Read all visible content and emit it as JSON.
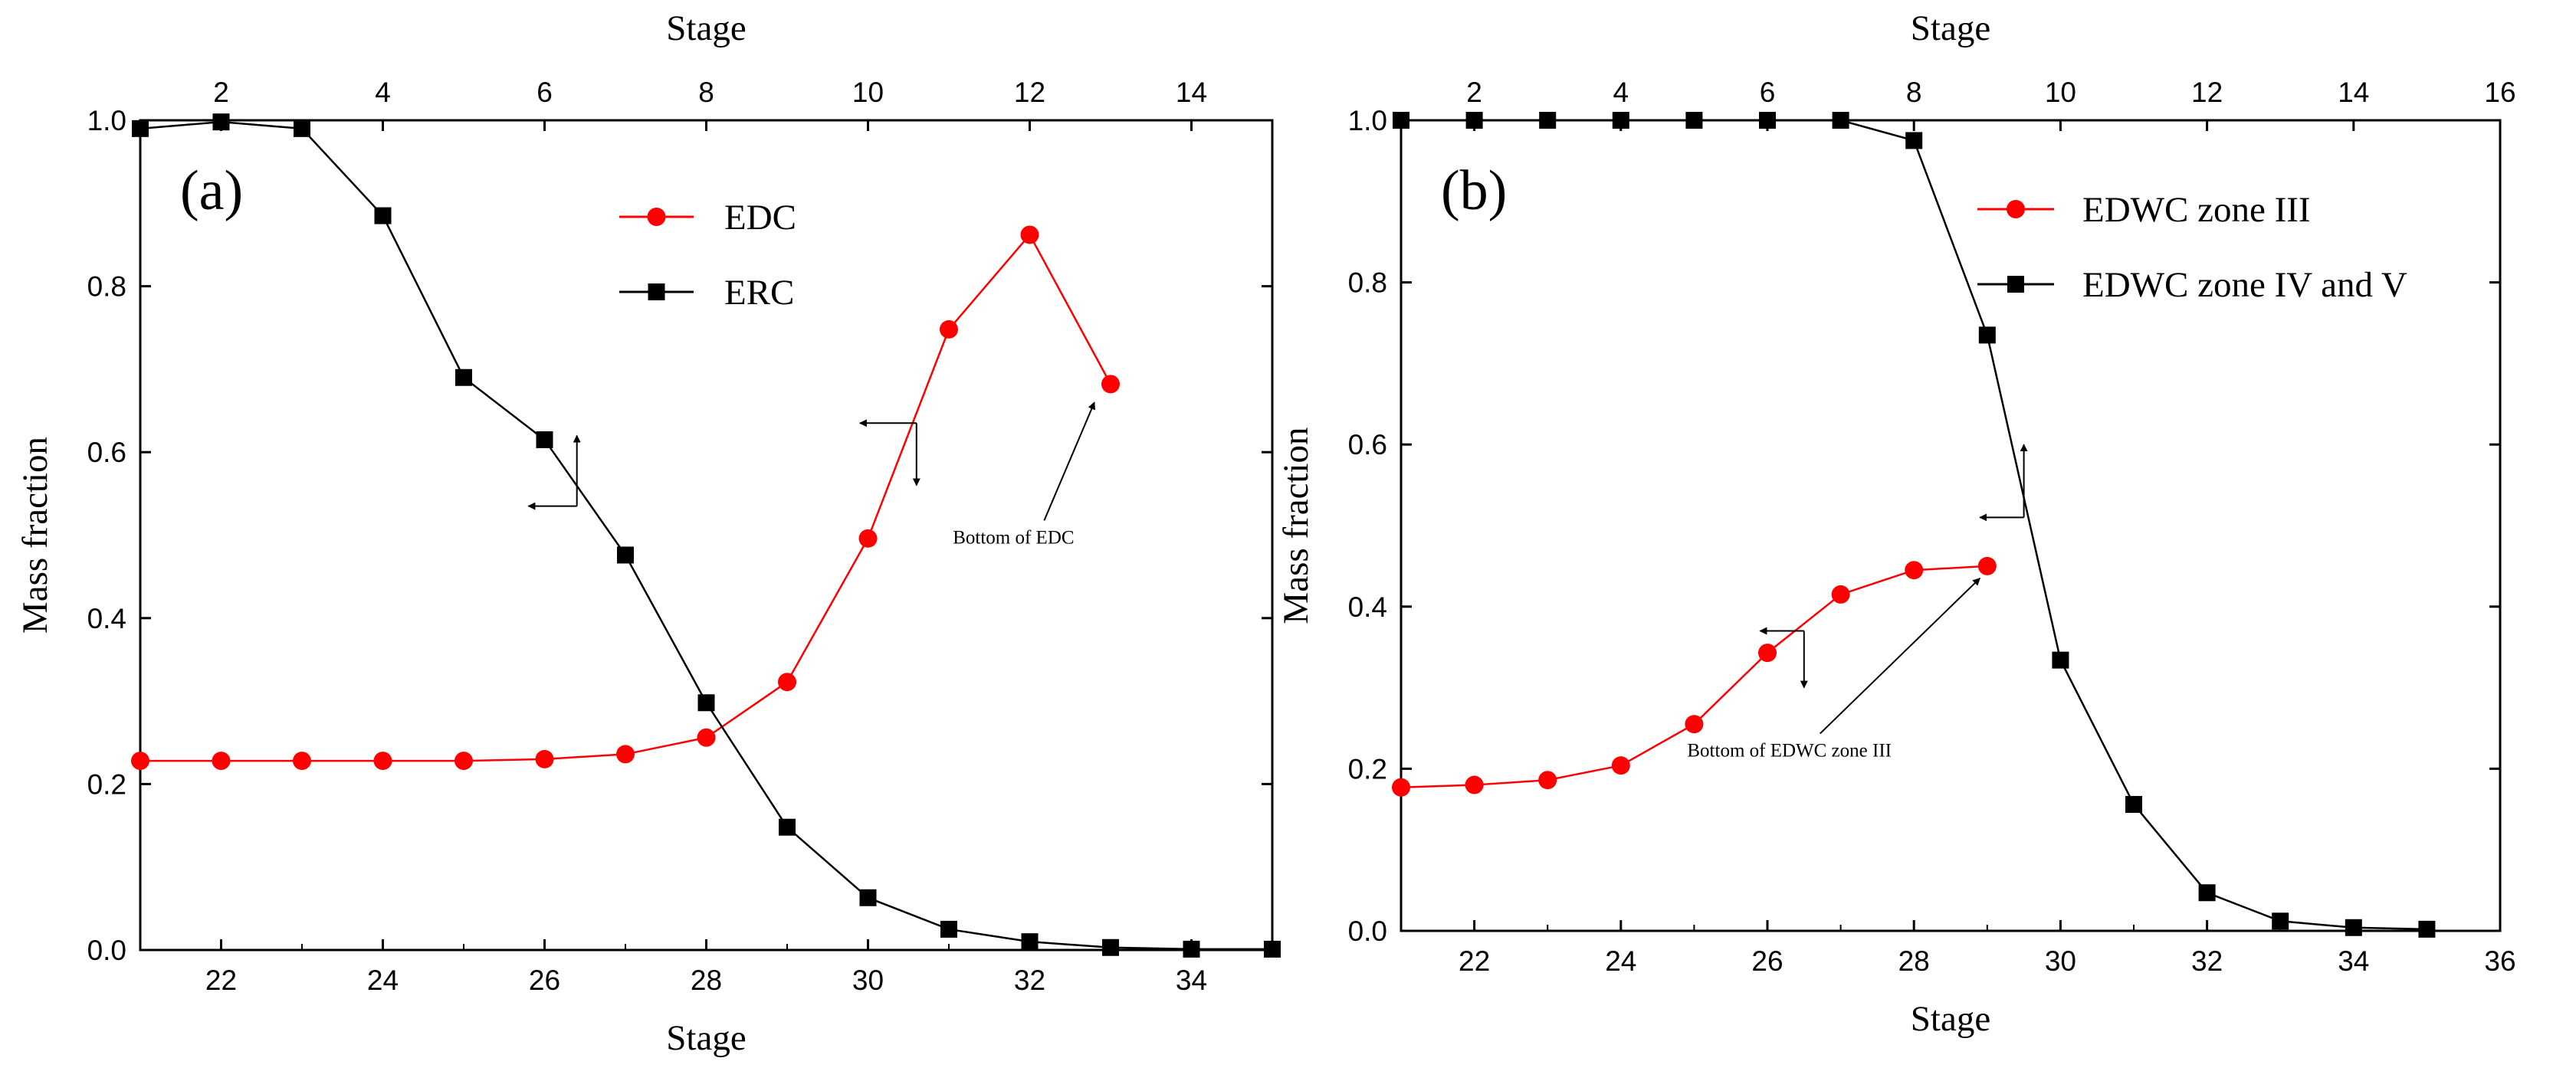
{
  "chart_data": [
    {
      "id": "a",
      "type": "line",
      "panel_label": "(a)",
      "xlabel": "Stage",
      "ylabel": "Mass fraction",
      "top_xlabel": "Stage",
      "xlim": [
        21,
        35
      ],
      "ylim": [
        0.0,
        1.0
      ],
      "top_xlim": [
        1,
        15
      ],
      "x_ticks": [
        22,
        24,
        26,
        28,
        30,
        32,
        34
      ],
      "top_ticks": [
        2,
        4,
        6,
        8,
        10,
        12,
        14
      ],
      "y_ticks": [
        "0.0",
        "0.2",
        "0.4",
        "0.6",
        "0.8",
        "1.0"
      ],
      "series": [
        {
          "name": "EDC",
          "color": "#ff0000",
          "marker": "circle",
          "axis": "bottom",
          "x": [
            21,
            22,
            23,
            24,
            25,
            26,
            27,
            28,
            29,
            30,
            31,
            32,
            33
          ],
          "y": [
            0.228,
            0.228,
            0.228,
            0.228,
            0.228,
            0.23,
            0.236,
            0.256,
            0.323,
            0.496,
            0.748,
            0.862,
            0.682
          ]
        },
        {
          "name": "ERC",
          "color": "#000000",
          "marker": "square",
          "axis": "top",
          "x": [
            1,
            2,
            3,
            4,
            5,
            6,
            7,
            8,
            9,
            10,
            11,
            12,
            13,
            14,
            15
          ],
          "y": [
            0.99,
            0.998,
            0.99,
            0.885,
            0.69,
            0.615,
            0.476,
            0.298,
            0.148,
            0.063,
            0.025,
            0.01,
            0.003,
            0.001,
            0.001
          ]
        }
      ],
      "annotations": [
        {
          "text": "Bottom of EDC",
          "x": 31.8,
          "y": 0.49,
          "arrow_to": [
            32.8,
            0.66
          ]
        }
      ],
      "axis_arrows": [
        {
          "x": 26.4,
          "y": 0.535,
          "left_to_x": 25.8,
          "up_to_y": 0.62
        },
        {
          "x": 30.6,
          "y": 0.635,
          "left_to_x": 29.9,
          "down_to_y": 0.56
        }
      ]
    },
    {
      "id": "b",
      "type": "line",
      "panel_label": "(b)",
      "xlabel": "Stage",
      "ylabel": "Mass fraction",
      "top_xlabel": "Stage",
      "xlim": [
        21,
        36
      ],
      "ylim": [
        0.0,
        1.0
      ],
      "top_xlim": [
        1,
        16
      ],
      "x_ticks": [
        22,
        24,
        26,
        28,
        30,
        32,
        34,
        36
      ],
      "top_ticks": [
        2,
        4,
        6,
        8,
        10,
        12,
        14,
        16
      ],
      "y_ticks": [
        "0.0",
        "0.2",
        "0.4",
        "0.6",
        "0.8",
        "1.0"
      ],
      "series": [
        {
          "name": "EDWC zone III",
          "color": "#ff0000",
          "marker": "circle",
          "axis": "bottom",
          "x": [
            21,
            22,
            23,
            24,
            25,
            26,
            27,
            28,
            29
          ],
          "y": [
            0.177,
            0.18,
            0.186,
            0.204,
            0.255,
            0.343,
            0.415,
            0.445,
            0.45
          ]
        },
        {
          "name": "EDWC zone IV and V",
          "color": "#000000",
          "marker": "square",
          "axis": "top",
          "x": [
            1,
            2,
            3,
            4,
            5,
            6,
            7,
            8,
            9,
            10,
            11,
            12,
            13,
            14,
            15
          ],
          "y": [
            1.0,
            1.0,
            1.0,
            1.0,
            1.0,
            1.0,
            1.0,
            0.975,
            0.735,
            0.334,
            0.156,
            0.047,
            0.012,
            0.004,
            0.002
          ]
        }
      ],
      "annotations": [
        {
          "text": "Bottom of EDWC zone III",
          "x": 26.3,
          "y": 0.215,
          "arrow_to": [
            28.9,
            0.435
          ]
        }
      ],
      "axis_arrows": [
        {
          "x": 29.5,
          "y": 0.51,
          "left_to_x": 28.9,
          "up_to_y": 0.6
        },
        {
          "x": 26.5,
          "y": 0.37,
          "left_to_x": 25.9,
          "down_to_y": 0.3
        }
      ]
    }
  ]
}
